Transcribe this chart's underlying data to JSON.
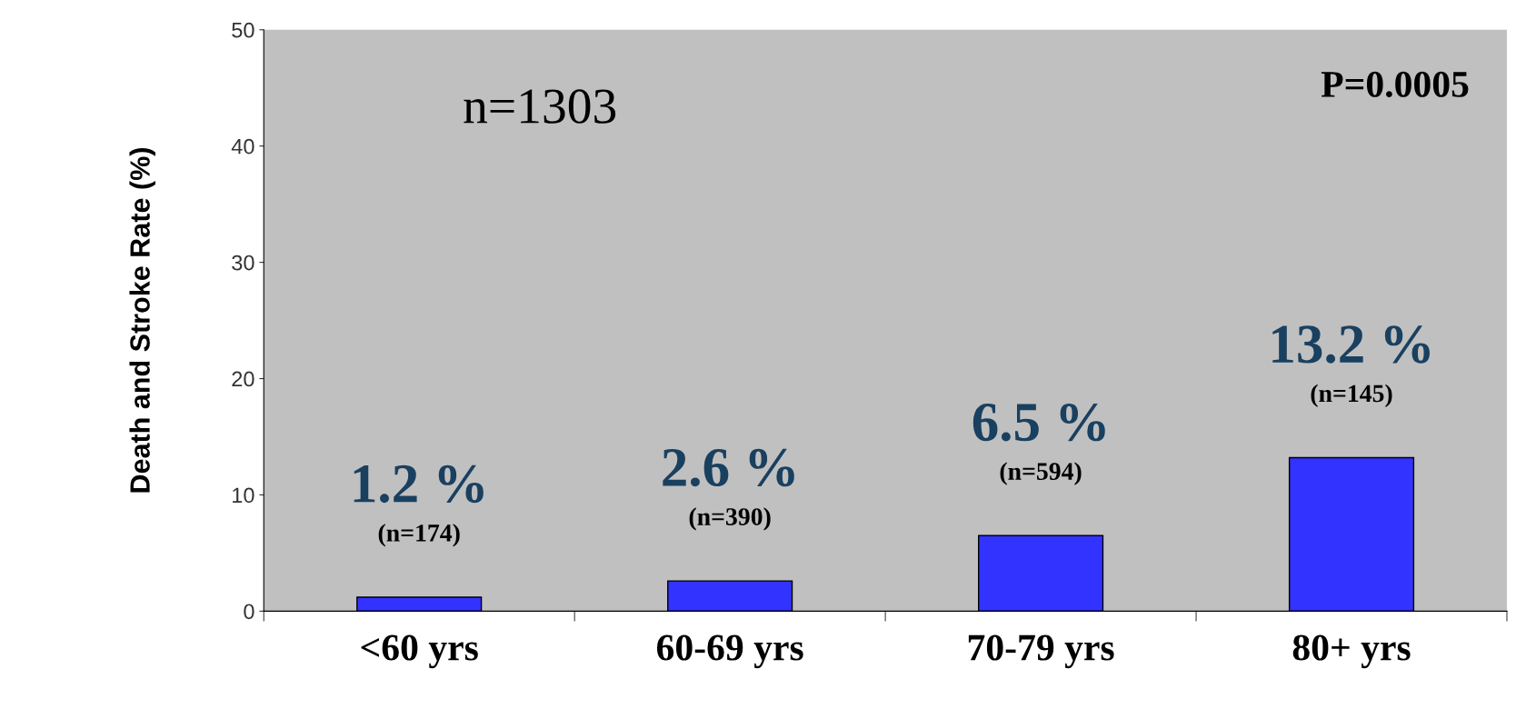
{
  "chart_data": {
    "type": "bar",
    "ylabel": "Death and Stroke Rate (%)",
    "categories": [
      "<60 yrs",
      "60-69 yrs",
      "70-79 yrs",
      "80+ yrs"
    ],
    "values": [
      1.2,
      2.6,
      6.5,
      13.2
    ],
    "color": "#3333ff",
    "value_labels": [
      "1.2 %",
      "2.6 %",
      "6.5 %",
      "13.2 %"
    ],
    "ylim": [
      0,
      50
    ],
    "yticks": [
      0,
      10,
      20,
      30,
      40,
      50
    ],
    "grid": false,
    "legend": false,
    "annotations": [
      "n=1303",
      "P=0.0005",
      {
        "text": "(n=174)",
        "x": "<60 yrs",
        "y": 1.2
      },
      {
        "text": "(n=390)",
        "x": "60-69 yrs",
        "y": 2.6
      },
      {
        "text": "(n=594)",
        "x": "70-79 yrs",
        "y": 6.5
      },
      {
        "text": "(n=145)",
        "x": "80+ yrs",
        "y": 13.2
      }
    ]
  }
}
